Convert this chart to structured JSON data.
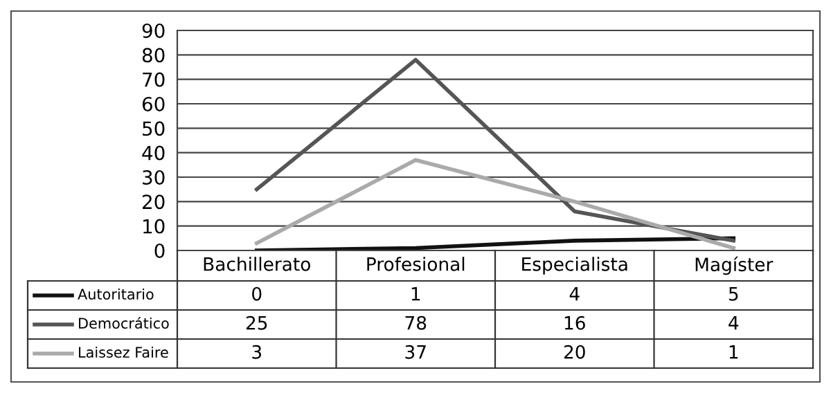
{
  "chart_data": {
    "type": "line",
    "categories": [
      "Bachillerato",
      "Profesional",
      "Especialista",
      "Magíster"
    ],
    "series": [
      {
        "name": "Autoritario",
        "color": "#111111",
        "values": [
          0,
          1,
          4,
          5
        ]
      },
      {
        "name": "Democrático",
        "color": "#555555",
        "values": [
          25,
          78,
          16,
          4
        ]
      },
      {
        "name": "Laissez Faire",
        "color": "#aaaaaa",
        "values": [
          3,
          37,
          20,
          1
        ]
      }
    ],
    "ylim": [
      0,
      90
    ],
    "yticks": [
      0,
      10,
      20,
      30,
      40,
      50,
      60,
      70,
      80,
      90
    ],
    "grid": "y",
    "data_labels": true,
    "marker": "none",
    "line_style": "solid",
    "legend": "bottom"
  }
}
